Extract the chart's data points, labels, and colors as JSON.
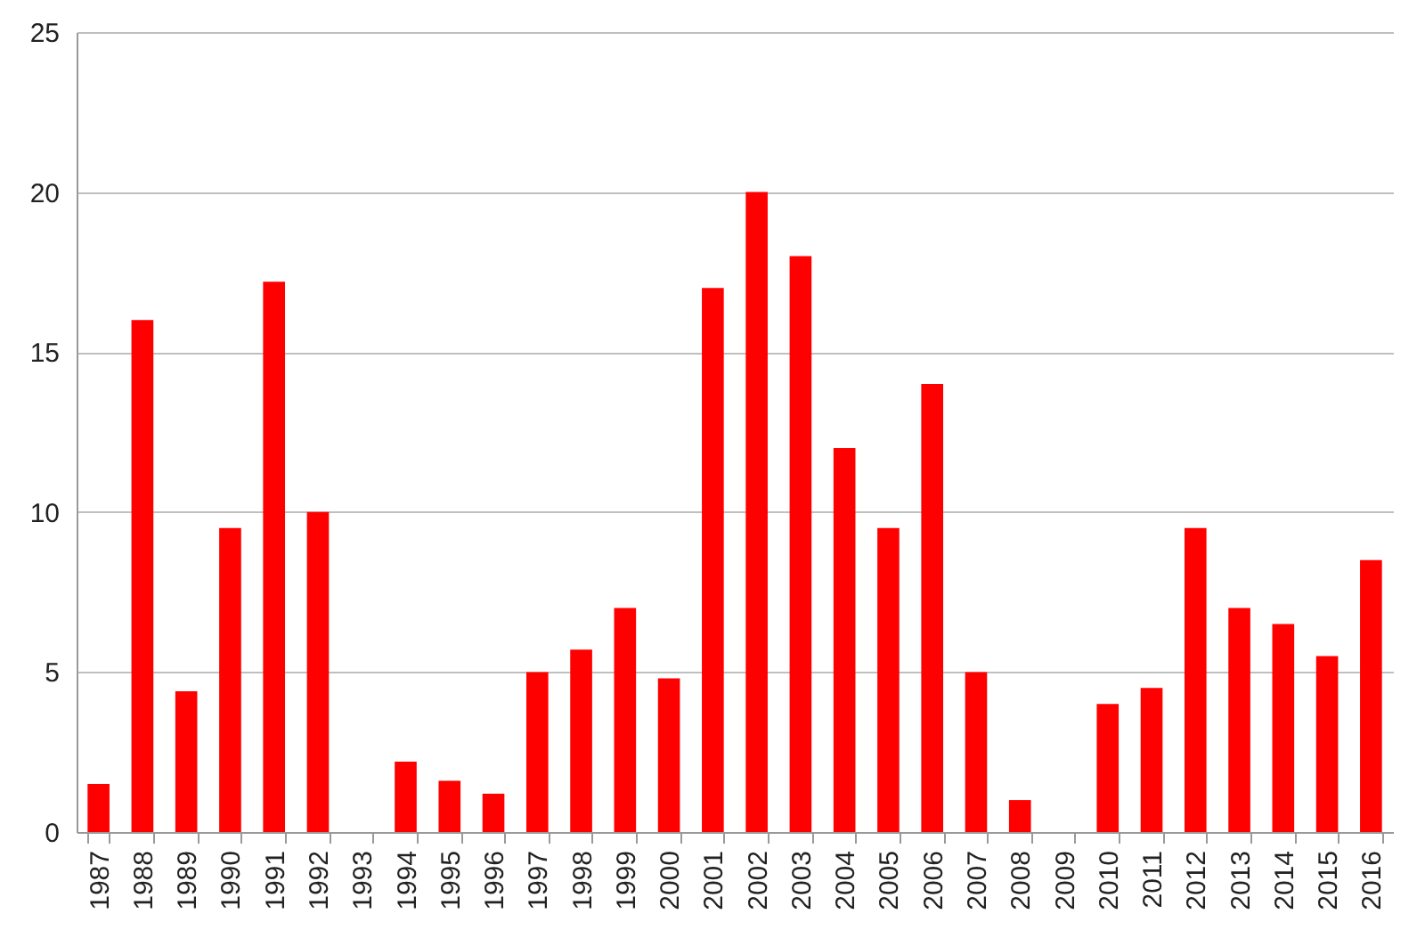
{
  "chart_data": {
    "type": "bar",
    "categories": [
      "1987",
      "1988",
      "1989",
      "1990",
      "1991",
      "1992",
      "1993",
      "1994",
      "1995",
      "1996",
      "1997",
      "1998",
      "1999",
      "2000",
      "2001",
      "2002",
      "2003",
      "2004",
      "2005",
      "2006",
      "2007",
      "2008",
      "2009",
      "2010",
      "2011",
      "2012",
      "2013",
      "2014",
      "2015",
      "2016"
    ],
    "values": [
      1.5,
      16,
      4.4,
      9.5,
      17.2,
      10,
      0,
      2.2,
      1.6,
      1.2,
      5,
      5.7,
      7,
      4.8,
      17,
      20,
      18,
      12,
      9.5,
      14,
      5,
      1,
      0,
      4,
      4.5,
      9.5,
      7,
      6.5,
      5.5,
      8.5
    ],
    "color": "#ff0000",
    "ylim": [
      0,
      25
    ],
    "yticks": [
      0,
      5,
      10,
      15,
      20,
      25
    ],
    "grid": "y"
  }
}
